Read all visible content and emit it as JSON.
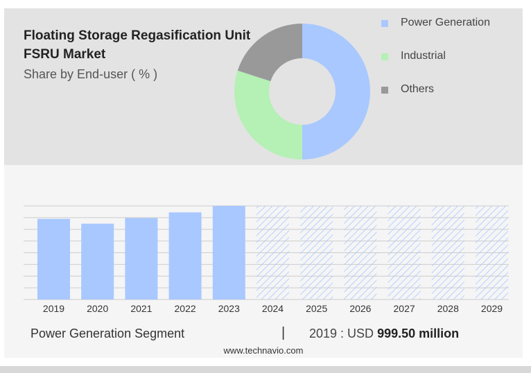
{
  "title": "Floating Storage Regasification Unit FSRU Market",
  "subtitle": "Share by End-user ( % )",
  "colors": {
    "power": "#a8c8ff",
    "industrial": "#b5f0b5",
    "others": "#999999",
    "forecast_hatch": "#a8c8ff"
  },
  "chart_data": [
    {
      "type": "pie",
      "style": "donut",
      "labels": [
        "Power Generation",
        "Industrial",
        "Others"
      ],
      "values": [
        50,
        30,
        20
      ],
      "colors": [
        "#a8c8ff",
        "#b5f0b5",
        "#999999"
      ],
      "legend_position": "right"
    },
    {
      "type": "bar",
      "categories": [
        "2019",
        "2020",
        "2021",
        "2022",
        "2023",
        "2024",
        "2025",
        "2026",
        "2027",
        "2028",
        "2029"
      ],
      "values": [
        999.5,
        940,
        1010,
        1080,
        1160,
        null,
        null,
        null,
        null,
        null,
        null
      ],
      "forecast_categories": [
        "2024",
        "2025",
        "2026",
        "2027",
        "2028",
        "2029"
      ],
      "ylim": [
        0,
        1160
      ],
      "grid": true
    }
  ],
  "footer": {
    "segment": "Power Generation Segment",
    "separator": "|",
    "year_label": "2019 : USD",
    "value": "999.50 million",
    "site": "www.technavio.com"
  }
}
